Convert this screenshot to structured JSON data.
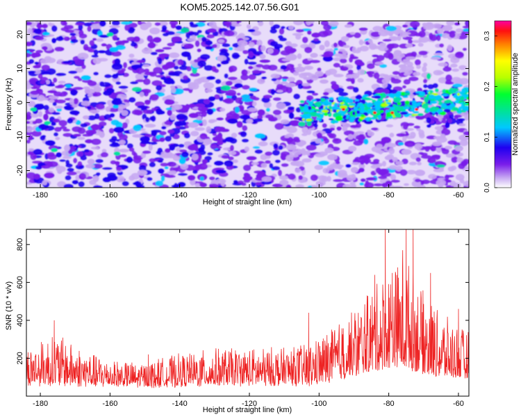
{
  "title": "KOM5.2025.142.07.56.G01",
  "chart_data": [
    {
      "type": "heatmap",
      "xlabel": "Height of straight line (km)",
      "ylabel": "Frequency (Hz)",
      "xlim": [
        -184,
        -57
      ],
      "ylim": [
        -25,
        24
      ],
      "xticks": [
        -180,
        -160,
        -140,
        -120,
        -100,
        -80,
        -60
      ],
      "yticks": [
        -20,
        -10,
        0,
        10,
        20
      ],
      "colorbar": {
        "label": "Normalized spectral amplitude",
        "range": [
          0.0,
          0.33
        ],
        "ticks": [
          0.0,
          0.1,
          0.2,
          0.3
        ],
        "colors": [
          "#ffffff",
          "#c6a8f2",
          "#7a1dea",
          "#1f00f0",
          "#00c8ff",
          "#00e0a0",
          "#00ff30",
          "#b8ff00",
          "#ffff00",
          "#ff8000",
          "#ff1010",
          "#ff00a0"
        ]
      },
      "features": [
        {
          "description_value": "signal trace",
          "x_range": [
            -105,
            -57
          ],
          "frequency_center": [
            -3,
            1
          ]
        }
      ]
    },
    {
      "type": "line",
      "xlabel": "Height of straight line (km)",
      "ylabel": "SNR (10 * v/v)",
      "xlim": [
        -184,
        -57
      ],
      "ylim": [
        0,
        880
      ],
      "xticks": [
        -180,
        -160,
        -140,
        -120,
        -100,
        -80,
        -60
      ],
      "yticks": [
        200,
        400,
        600,
        800
      ],
      "series": [
        {
          "color": "#ee2222",
          "envelope": [
            {
              "x": -184,
              "base": 60,
              "peak": 300
            },
            {
              "x": -176,
              "base": 60,
              "peak": 400
            },
            {
              "x": -165,
              "base": 55,
              "peak": 260
            },
            {
              "x": -152,
              "base": 50,
              "peak": 200
            },
            {
              "x": -140,
              "base": 55,
              "peak": 260
            },
            {
              "x": -128,
              "base": 60,
              "peak": 300
            },
            {
              "x": -115,
              "base": 60,
              "peak": 300
            },
            {
              "x": -103,
              "base": 60,
              "peak": 330
            },
            {
              "x": -97,
              "base": 80,
              "peak": 420
            },
            {
              "x": -92,
              "base": 100,
              "peak": 500
            },
            {
              "x": -86,
              "base": 130,
              "peak": 650
            },
            {
              "x": -80,
              "base": 150,
              "peak": 800
            },
            {
              "x": -75,
              "base": 150,
              "peak": 880
            },
            {
              "x": -70,
              "base": 120,
              "peak": 650
            },
            {
              "x": -64,
              "base": 100,
              "peak": 500
            },
            {
              "x": -57,
              "base": 90,
              "peak": 400
            }
          ],
          "spikes": [
            [
              -176,
              400
            ],
            [
              -149,
              220
            ],
            [
              -103,
              440
            ],
            [
              -84,
              640
            ],
            [
              -81,
              880
            ],
            [
              -79,
              650
            ],
            [
              -76,
              770
            ],
            [
              -75,
              880
            ],
            [
              -73,
              880
            ],
            [
              -68,
              650
            ],
            [
              -60,
              460
            ]
          ]
        }
      ]
    }
  ]
}
